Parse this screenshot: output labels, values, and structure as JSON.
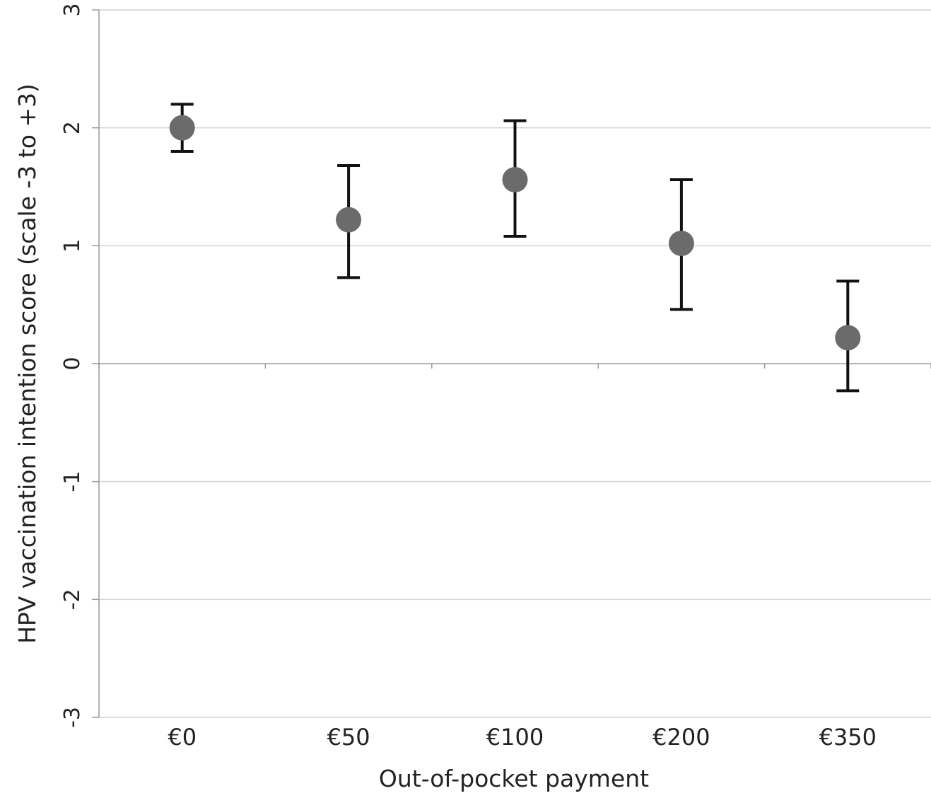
{
  "chart_data": {
    "type": "scatter",
    "title": "",
    "xlabel": "Out-of-pocket payment",
    "ylabel": "HPV vaccination intention score (scale -3 to +3)",
    "categories": [
      "€0",
      "€50",
      "€100",
      "€200",
      "€350"
    ],
    "ylim": [
      -3,
      3
    ],
    "yticks": [
      3,
      2,
      1,
      0,
      -1,
      -2,
      -3
    ],
    "ytick_labels": [
      "3",
      "2",
      "1",
      "0",
      "-1",
      "-2",
      "-3"
    ],
    "grid": true,
    "legend": "none",
    "series": [
      {
        "values": [
          2.0,
          1.22,
          1.56,
          1.02,
          0.22
        ],
        "error_low": [
          1.8,
          0.73,
          1.08,
          0.46,
          -0.23
        ],
        "error_high": [
          2.2,
          1.68,
          2.06,
          1.56,
          0.7
        ]
      }
    ],
    "colors": {
      "marker": "#6b6b6b",
      "error_bar": "#111111",
      "grid": "#d4d4d4",
      "axis": "#9a9a9a"
    }
  }
}
